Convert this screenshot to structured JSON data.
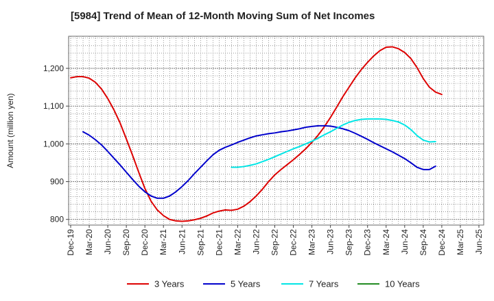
{
  "chart_data": {
    "type": "line",
    "title": "[5984]  Trend of Mean of 12-Month Moving Sum of Net Incomes",
    "xlabel": "",
    "ylabel": "Amount (million yen)",
    "ylim": [
      785,
      1285
    ],
    "y_ticks": [
      800,
      900,
      1000,
      1100,
      1200
    ],
    "y_tick_labels": [
      "800",
      "900",
      "1,000",
      "1,100",
      "1,200"
    ],
    "x_ticks": [
      "2019-12",
      "2020-03",
      "2020-06",
      "2020-09",
      "2020-12",
      "2021-03",
      "2021-06",
      "2021-09",
      "2021-12",
      "2022-03",
      "2022-06",
      "2022-09",
      "2022-12",
      "2023-03",
      "2023-06",
      "2023-09",
      "2023-12",
      "2024-03",
      "2024-06",
      "2024-09",
      "2024-12",
      "2025-03",
      "2025-06"
    ],
    "x_tick_labels": [
      "Dec-19",
      "Mar-20",
      "Jun-20",
      "Sep-20",
      "Dec-20",
      "Mar-21",
      "Jun-21",
      "Sep-21",
      "Dec-21",
      "Mar-22",
      "Jun-22",
      "Sep-22",
      "Dec-22",
      "Mar-23",
      "Jun-23",
      "Sep-23",
      "Dec-23",
      "Mar-24",
      "Jun-24",
      "Sep-24",
      "Dec-24",
      "Mar-25",
      "Jun-25"
    ],
    "grid": true,
    "legend_position": "bottom",
    "series": [
      {
        "name": "3 Years",
        "color": "#dd0000",
        "points": [
          [
            "2019-12",
            1175
          ],
          [
            "2020-01",
            1178
          ],
          [
            "2020-02",
            1178
          ],
          [
            "2020-03",
            1174
          ],
          [
            "2020-04",
            1163
          ],
          [
            "2020-05",
            1145
          ],
          [
            "2020-06",
            1120
          ],
          [
            "2020-07",
            1090
          ],
          [
            "2020-08",
            1055
          ],
          [
            "2020-09",
            1013
          ],
          [
            "2020-10",
            970
          ],
          [
            "2020-11",
            925
          ],
          [
            "2020-12",
            882
          ],
          [
            "2021-01",
            848
          ],
          [
            "2021-02",
            825
          ],
          [
            "2021-03",
            810
          ],
          [
            "2021-04",
            800
          ],
          [
            "2021-05",
            796
          ],
          [
            "2021-06",
            795
          ],
          [
            "2021-07",
            796
          ],
          [
            "2021-08",
            799
          ],
          [
            "2021-09",
            803
          ],
          [
            "2021-10",
            809
          ],
          [
            "2021-11",
            817
          ],
          [
            "2021-12",
            822
          ],
          [
            "2022-01",
            825
          ],
          [
            "2022-02",
            824
          ],
          [
            "2022-03",
            827
          ],
          [
            "2022-04",
            835
          ],
          [
            "2022-05",
            847
          ],
          [
            "2022-06",
            862
          ],
          [
            "2022-07",
            880
          ],
          [
            "2022-08",
            900
          ],
          [
            "2022-09",
            918
          ],
          [
            "2022-10",
            932
          ],
          [
            "2022-11",
            945
          ],
          [
            "2022-12",
            958
          ],
          [
            "2023-01",
            972
          ],
          [
            "2023-02",
            987
          ],
          [
            "2023-03",
            1004
          ],
          [
            "2023-04",
            1023
          ],
          [
            "2023-05",
            1045
          ],
          [
            "2023-06",
            1070
          ],
          [
            "2023-07",
            1097
          ],
          [
            "2023-08",
            1125
          ],
          [
            "2023-09",
            1150
          ],
          [
            "2023-10",
            1175
          ],
          [
            "2023-11",
            1197
          ],
          [
            "2023-12",
            1216
          ],
          [
            "2024-01",
            1233
          ],
          [
            "2024-02",
            1247
          ],
          [
            "2024-03",
            1256
          ],
          [
            "2024-04",
            1257
          ],
          [
            "2024-05",
            1252
          ],
          [
            "2024-06",
            1242
          ],
          [
            "2024-07",
            1226
          ],
          [
            "2024-08",
            1202
          ],
          [
            "2024-09",
            1173
          ],
          [
            "2024-10",
            1150
          ],
          [
            "2024-11",
            1137
          ],
          [
            "2024-12",
            1131
          ]
        ]
      },
      {
        "name": "5 Years",
        "color": "#0000cc",
        "points": [
          [
            "2020-02",
            1032
          ],
          [
            "2020-03",
            1023
          ],
          [
            "2020-04",
            1011
          ],
          [
            "2020-05",
            997
          ],
          [
            "2020-06",
            980
          ],
          [
            "2020-07",
            962
          ],
          [
            "2020-08",
            944
          ],
          [
            "2020-09",
            925
          ],
          [
            "2020-10",
            906
          ],
          [
            "2020-11",
            888
          ],
          [
            "2020-12",
            873
          ],
          [
            "2021-01",
            862
          ],
          [
            "2021-02",
            856
          ],
          [
            "2021-03",
            856
          ],
          [
            "2021-04",
            862
          ],
          [
            "2021-05",
            873
          ],
          [
            "2021-06",
            887
          ],
          [
            "2021-07",
            903
          ],
          [
            "2021-08",
            921
          ],
          [
            "2021-09",
            938
          ],
          [
            "2021-10",
            955
          ],
          [
            "2021-11",
            971
          ],
          [
            "2021-12",
            983
          ],
          [
            "2022-01",
            991
          ],
          [
            "2022-02",
            997
          ],
          [
            "2022-03",
            1004
          ],
          [
            "2022-04",
            1010
          ],
          [
            "2022-05",
            1016
          ],
          [
            "2022-06",
            1021
          ],
          [
            "2022-07",
            1024
          ],
          [
            "2022-08",
            1027
          ],
          [
            "2022-09",
            1029
          ],
          [
            "2022-10",
            1032
          ],
          [
            "2022-11",
            1034
          ],
          [
            "2022-12",
            1037
          ],
          [
            "2023-01",
            1040
          ],
          [
            "2023-02",
            1044
          ],
          [
            "2023-03",
            1046
          ],
          [
            "2023-04",
            1048
          ],
          [
            "2023-05",
            1048
          ],
          [
            "2023-06",
            1047
          ],
          [
            "2023-07",
            1044
          ],
          [
            "2023-08",
            1040
          ],
          [
            "2023-09",
            1035
          ],
          [
            "2023-10",
            1028
          ],
          [
            "2023-11",
            1020
          ],
          [
            "2023-12",
            1012
          ],
          [
            "2024-01",
            1003
          ],
          [
            "2024-02",
            995
          ],
          [
            "2024-03",
            987
          ],
          [
            "2024-04",
            979
          ],
          [
            "2024-05",
            970
          ],
          [
            "2024-06",
            961
          ],
          [
            "2024-07",
            950
          ],
          [
            "2024-08",
            938
          ],
          [
            "2024-09",
            932
          ],
          [
            "2024-10",
            932
          ],
          [
            "2024-11",
            941
          ]
        ]
      },
      {
        "name": "7 Years",
        "color": "#00e5e5",
        "points": [
          [
            "2022-02",
            938
          ],
          [
            "2022-03",
            938
          ],
          [
            "2022-04",
            940
          ],
          [
            "2022-05",
            943
          ],
          [
            "2022-06",
            947
          ],
          [
            "2022-07",
            953
          ],
          [
            "2022-08",
            959
          ],
          [
            "2022-09",
            966
          ],
          [
            "2022-10",
            973
          ],
          [
            "2022-11",
            980
          ],
          [
            "2022-12",
            987
          ],
          [
            "2023-01",
            993
          ],
          [
            "2023-02",
            1000
          ],
          [
            "2023-03",
            1007
          ],
          [
            "2023-04",
            1015
          ],
          [
            "2023-05",
            1024
          ],
          [
            "2023-06",
            1032
          ],
          [
            "2023-07",
            1041
          ],
          [
            "2023-08",
            1050
          ],
          [
            "2023-09",
            1057
          ],
          [
            "2023-10",
            1062
          ],
          [
            "2023-11",
            1065
          ],
          [
            "2023-12",
            1066
          ],
          [
            "2024-01",
            1066
          ],
          [
            "2024-02",
            1066
          ],
          [
            "2024-03",
            1065
          ],
          [
            "2024-04",
            1062
          ],
          [
            "2024-05",
            1058
          ],
          [
            "2024-06",
            1050
          ],
          [
            "2024-07",
            1038
          ],
          [
            "2024-08",
            1022
          ],
          [
            "2024-09",
            1010
          ],
          [
            "2024-10",
            1005
          ],
          [
            "2024-11",
            1006
          ]
        ]
      },
      {
        "name": "10 Years",
        "color": "#228b22",
        "points": []
      }
    ]
  }
}
